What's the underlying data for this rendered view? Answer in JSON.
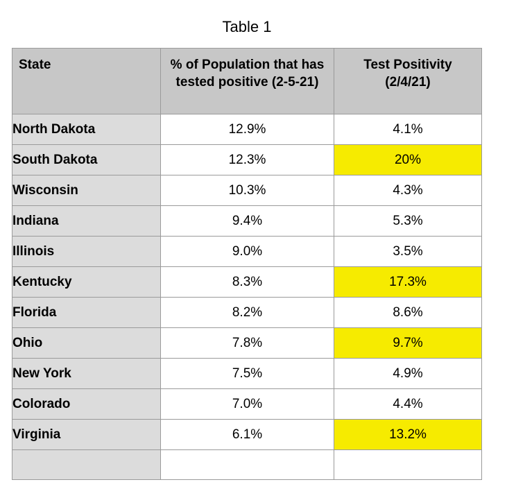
{
  "caption": "Table 1",
  "colors": {
    "header_bg": "#c7c7c7",
    "state_bg": "#dcdcdc",
    "highlight": "#f6eb00",
    "border": "#9a9a9a"
  },
  "headers": {
    "state": "State",
    "population": "% of Population that has tested positive (2-5-21)",
    "positivity": "Test Positivity (2/4/21)"
  },
  "rows": [
    {
      "state": "North Dakota",
      "population": "12.9%",
      "positivity": "4.1%",
      "highlighted": false
    },
    {
      "state": "South Dakota",
      "population": "12.3%",
      "positivity": "20%",
      "highlighted": true
    },
    {
      "state": "Wisconsin",
      "population": "10.3%",
      "positivity": "4.3%",
      "highlighted": false
    },
    {
      "state": "Indiana",
      "population": "9.4%",
      "positivity": "5.3%",
      "highlighted": false
    },
    {
      "state": "Illinois",
      "population": "9.0%",
      "positivity": "3.5%",
      "highlighted": false
    },
    {
      "state": "Kentucky",
      "population": "8.3%",
      "positivity": "17.3%",
      "highlighted": true
    },
    {
      "state": "Florida",
      "population": "8.2%",
      "positivity": "8.6%",
      "highlighted": false
    },
    {
      "state": "Ohio",
      "population": "7.8%",
      "positivity": "9.7%",
      "highlighted": true
    },
    {
      "state": "New York",
      "population": "7.5%",
      "positivity": "4.9%",
      "highlighted": false
    },
    {
      "state": "Colorado",
      "population": "7.0%",
      "positivity": "4.4%",
      "highlighted": false
    },
    {
      "state": "Virginia",
      "population": "6.1%",
      "positivity": "13.2%",
      "highlighted": true
    }
  ]
}
